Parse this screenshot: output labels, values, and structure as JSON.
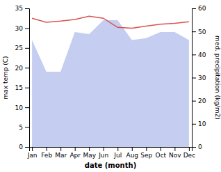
{
  "chart_data": {
    "type": "line",
    "categories": [
      "Jan",
      "Feb",
      "Mar",
      "Apr",
      "May",
      "Jun",
      "Jul",
      "Aug",
      "Sep",
      "Oct",
      "Nov",
      "Dec"
    ],
    "series": [
      {
        "type": "area",
        "color": "#c5cdf0",
        "values": [
          27,
          19,
          19,
          29,
          28.5,
          32,
          32,
          27,
          27.5,
          29,
          29,
          27
        ]
      },
      {
        "type": "line",
        "color": "#d9534f",
        "values": [
          32.5,
          31.5,
          31.8,
          32.2,
          33.0,
          32.5,
          30.2,
          30.0,
          30.5,
          31.0,
          31.2,
          31.6
        ]
      }
    ],
    "xlabel": "date (month)",
    "ylabel": "max temp (C)",
    "y2label": "med. precipitation (kg/m2)",
    "ylim": [
      0,
      35
    ],
    "yticks": [
      0,
      5,
      10,
      15,
      20,
      25,
      30,
      35
    ],
    "y2lim": [
      0,
      60
    ],
    "y2ticks": [
      0,
      10,
      20,
      30,
      40,
      50,
      60
    ]
  }
}
